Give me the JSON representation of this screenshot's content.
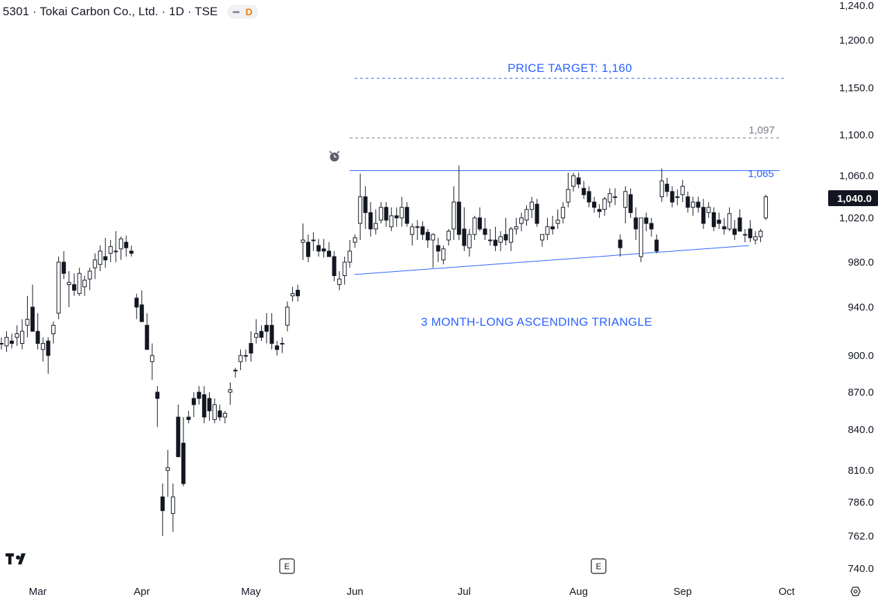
{
  "header": {
    "title": "5301 · Tokai Carbon Co., Ltd. · 1D · TSE",
    "badge": "D"
  },
  "current_price_label": "1,040.0",
  "chart_data": {
    "type": "candlestick",
    "title": "5301 · Tokai Carbon Co., Ltd. · 1D · TSE",
    "y_ticks": [
      740,
      762,
      786,
      810,
      840,
      870,
      900,
      940,
      980,
      1020,
      1060,
      1100,
      1150,
      1200,
      1240
    ],
    "y_tick_labels": [
      "740.0",
      "762.0",
      "786.0",
      "810.0",
      "840.0",
      "870.0",
      "900.0",
      "940.0",
      "980.0",
      "1,020.0",
      "1,060.0",
      "1,100.0",
      "1,150.0",
      "1,200.0",
      "1,240.0"
    ],
    "x_labels": [
      "Mar",
      "Apr",
      "May",
      "Jun",
      "Jul",
      "Aug",
      "Sep",
      "Oct"
    ],
    "annotations": {
      "price_target": "PRICE TARGET: 1,160",
      "pattern": "3 MONTH-LONG ASCENDING TRIANGLE",
      "level_1097": "1,097",
      "level_1065": "1,065",
      "earnings_marker": "E"
    },
    "levels": [
      {
        "value": 1160,
        "style": "dashed",
        "color": "#2962ff"
      },
      {
        "value": 1097,
        "style": "dashed",
        "color": "#787b86"
      },
      {
        "value": 1065,
        "style": "solid",
        "color": "#2962ff"
      }
    ],
    "trendline": {
      "from": 969,
      "to": 995
    },
    "ohlc": [
      [
        910,
        915,
        905,
        910
      ],
      [
        908,
        920,
        903,
        915
      ],
      [
        912,
        918,
        906,
        910
      ],
      [
        915,
        925,
        908,
        918
      ],
      [
        910,
        930,
        905,
        920
      ],
      [
        925,
        950,
        915,
        930
      ],
      [
        940,
        960,
        920,
        920
      ],
      [
        920,
        935,
        905,
        910
      ],
      [
        905,
        915,
        895,
        910
      ],
      [
        912,
        915,
        885,
        900
      ],
      [
        918,
        928,
        910,
        925
      ],
      [
        935,
        985,
        930,
        980
      ],
      [
        980,
        990,
        965,
        970
      ],
      [
        960,
        972,
        940,
        962
      ],
      [
        960,
        970,
        950,
        955
      ],
      [
        952,
        975,
        950,
        970
      ],
      [
        958,
        968,
        950,
        964
      ],
      [
        965,
        975,
        955,
        972
      ],
      [
        975,
        988,
        965,
        982
      ],
      [
        978,
        995,
        972,
        990
      ],
      [
        985,
        1002,
        975,
        982
      ],
      [
        988,
        1000,
        980,
        994
      ],
      [
        990,
        1008,
        980,
        990
      ],
      [
        992,
        1003,
        982,
        1001
      ],
      [
        998,
        1004,
        985,
        993
      ],
      [
        990,
        995,
        985,
        988
      ],
      [
        948,
        952,
        930,
        940
      ],
      [
        942,
        955,
        928,
        928
      ],
      [
        925,
        935,
        905,
        905
      ],
      [
        895,
        910,
        880,
        900
      ],
      [
        870,
        875,
        842,
        865
      ],
      [
        790,
        800,
        762,
        780
      ],
      [
        810,
        825,
        790,
        812
      ],
      [
        778,
        800,
        765,
        790
      ],
      [
        850,
        860,
        820,
        820
      ],
      [
        830,
        850,
        798,
        800
      ],
      [
        850,
        855,
        845,
        848
      ],
      [
        865,
        870,
        850,
        860
      ],
      [
        870,
        875,
        860,
        865
      ],
      [
        868,
        875,
        845,
        850
      ],
      [
        865,
        870,
        847,
        855
      ],
      [
        848,
        865,
        845,
        860
      ],
      [
        855,
        860,
        847,
        850
      ],
      [
        850,
        855,
        845,
        853
      ],
      [
        870,
        878,
        860,
        872
      ],
      [
        888,
        890,
        882,
        888
      ],
      [
        895,
        905,
        888,
        900
      ],
      [
        900,
        905,
        895,
        900
      ],
      [
        910,
        920,
        895,
        902
      ],
      [
        915,
        930,
        910,
        918
      ],
      [
        920,
        925,
        912,
        915
      ],
      [
        925,
        935,
        910,
        920
      ],
      [
        925,
        935,
        905,
        910
      ],
      [
        908,
        912,
        900,
        905
      ],
      [
        910,
        915,
        902,
        910
      ],
      [
        925,
        945,
        920,
        940
      ],
      [
        950,
        958,
        945,
        952
      ],
      [
        955,
        960,
        945,
        950
      ],
      [
        998,
        1015,
        982,
        1000
      ],
      [
        998,
        1005,
        980,
        985
      ],
      [
        1000,
        1007,
        990,
        1000
      ],
      [
        995,
        1001,
        985,
        990
      ],
      [
        992,
        1001,
        984,
        990
      ],
      [
        990,
        998,
        985,
        985
      ],
      [
        985,
        990,
        963,
        968
      ],
      [
        960,
        972,
        955,
        965
      ],
      [
        968,
        985,
        960,
        980
      ],
      [
        980,
        1000,
        975,
        990
      ],
      [
        998,
        1005,
        993,
        1002
      ],
      [
        1015,
        1062,
        1000,
        1040
      ],
      [
        1040,
        1050,
        1010,
        1025
      ],
      [
        1025,
        1035,
        1003,
        1010
      ],
      [
        1010,
        1028,
        1005,
        1015
      ],
      [
        1018,
        1035,
        1015,
        1030
      ],
      [
        1030,
        1035,
        1012,
        1018
      ],
      [
        1012,
        1030,
        1008,
        1022
      ],
      [
        1022,
        1030,
        1012,
        1020
      ],
      [
        1020,
        1040,
        1012,
        1030
      ],
      [
        1030,
        1035,
        1012,
        1015
      ],
      [
        1005,
        1015,
        995,
        1012
      ],
      [
        1012,
        1018,
        1000,
        1012
      ],
      [
        1012,
        1017,
        1000,
        1005
      ],
      [
        1007,
        1010,
        993,
        1000
      ],
      [
        1000,
        1006,
        975,
        1005
      ],
      [
        995,
        1002,
        980,
        990
      ],
      [
        982,
        995,
        978,
        992
      ],
      [
        1000,
        1010,
        995,
        1008
      ],
      [
        1010,
        1050,
        1000,
        1035
      ],
      [
        1035,
        1070,
        1000,
        1005
      ],
      [
        1010,
        1030,
        990,
        995
      ],
      [
        993,
        1010,
        985,
        1005
      ],
      [
        1005,
        1022,
        1000,
        1020
      ],
      [
        1020,
        1030,
        1008,
        1010
      ],
      [
        1010,
        1020,
        1000,
        1005
      ],
      [
        1000,
        1010,
        995,
        1000
      ],
      [
        1000,
        1012,
        990,
        995
      ],
      [
        998,
        1008,
        990,
        1003
      ],
      [
        1005,
        1020,
        995,
        1000
      ],
      [
        998,
        1012,
        990,
        1010
      ],
      [
        1010,
        1020,
        1005,
        1012
      ],
      [
        1015,
        1025,
        1008,
        1020
      ],
      [
        1018,
        1032,
        1013,
        1028
      ],
      [
        1028,
        1040,
        1020,
        1035
      ],
      [
        1033,
        1038,
        1012,
        1015
      ],
      [
        1000,
        1005,
        994,
        1005
      ],
      [
        1005,
        1020,
        1000,
        1012
      ],
      [
        1012,
        1022,
        1005,
        1010
      ],
      [
        1015,
        1028,
        1010,
        1018
      ],
      [
        1020,
        1035,
        1015,
        1030
      ],
      [
        1035,
        1063,
        1030,
        1047
      ],
      [
        1050,
        1063,
        1045,
        1060
      ],
      [
        1058,
        1063,
        1048,
        1052
      ],
      [
        1048,
        1055,
        1038,
        1042
      ],
      [
        1045,
        1050,
        1030,
        1035
      ],
      [
        1035,
        1040,
        1025,
        1030
      ],
      [
        1028,
        1033,
        1020,
        1026
      ],
      [
        1028,
        1040,
        1022,
        1038
      ],
      [
        1035,
        1048,
        1030,
        1043
      ],
      [
        1040,
        1048,
        1032,
        1040
      ],
      [
        1000,
        1005,
        985,
        993
      ],
      [
        1030,
        1050,
        1015,
        1045
      ],
      [
        1042,
        1048,
        1020,
        1025
      ],
      [
        1020,
        1030,
        1000,
        1010
      ],
      [
        985,
        1020,
        980,
        1020
      ],
      [
        1020,
        1025,
        1008,
        1015
      ],
      [
        1015,
        1020,
        1003,
        1010
      ],
      [
        1000,
        1005,
        988,
        990
      ],
      [
        1040,
        1067,
        1035,
        1055
      ],
      [
        1052,
        1058,
        1040,
        1045
      ],
      [
        1045,
        1050,
        1030,
        1035
      ],
      [
        1040,
        1047,
        1032,
        1040
      ],
      [
        1042,
        1056,
        1035,
        1050
      ],
      [
        1040,
        1045,
        1025,
        1030
      ],
      [
        1030,
        1040,
        1022,
        1035
      ],
      [
        1035,
        1040,
        1025,
        1030
      ],
      [
        1030,
        1038,
        1010,
        1015
      ],
      [
        1025,
        1035,
        1020,
        1030
      ],
      [
        1025,
        1030,
        1008,
        1012
      ],
      [
        1018,
        1025,
        1010,
        1015
      ],
      [
        1012,
        1020,
        1005,
        1010
      ],
      [
        1010,
        1030,
        1008,
        1024
      ],
      [
        1010,
        1018,
        1000,
        1005
      ],
      [
        1020,
        1028,
        1008,
        1008
      ],
      [
        1005,
        1010,
        998,
        1005
      ],
      [
        1010,
        1018,
        998,
        1002
      ],
      [
        1000,
        1008,
        996,
        1003
      ],
      [
        1003,
        1010,
        998,
        1008
      ],
      [
        1020,
        1042,
        1018,
        1040
      ]
    ]
  }
}
